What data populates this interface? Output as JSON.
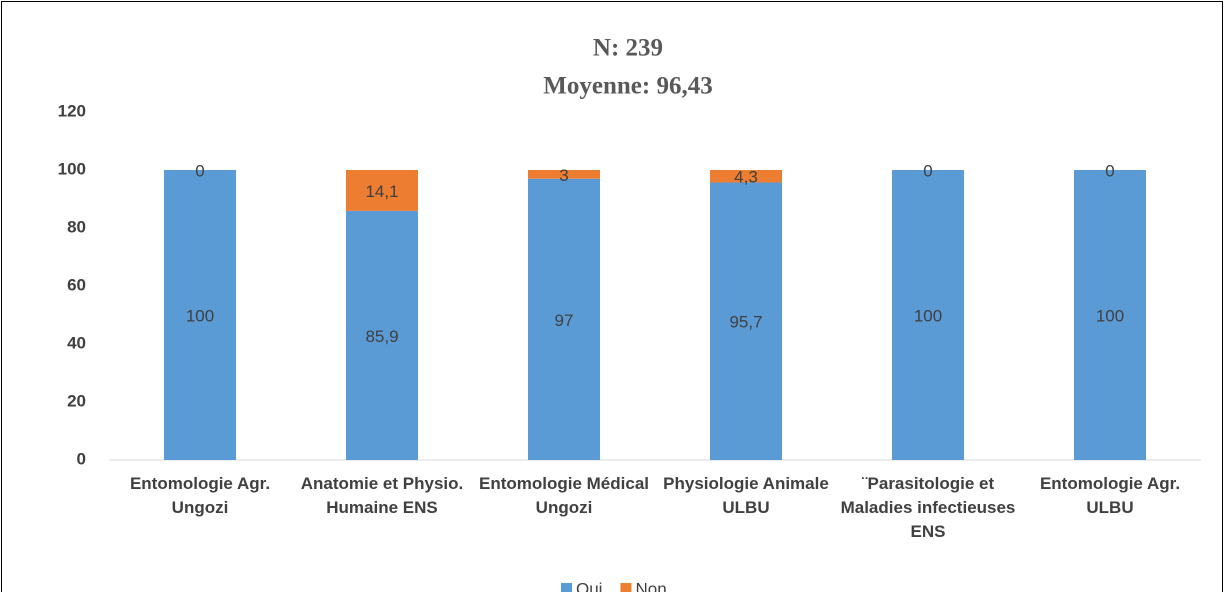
{
  "chart_data": {
    "type": "stacked_bar",
    "title": "N: 239",
    "subtitle": "Moyenne: 96,43",
    "categories": [
      "Entomologie Agr. Ungozi",
      "Anatomie et Physio. Humaine ENS",
      "Entomologie Médical Ungozi",
      "Physiologie Animale ULBU",
      "¨Parasitologie et Maladies infectieuses ENS",
      "Entomologie Agr. ULBU"
    ],
    "series": [
      {
        "name": "Oui",
        "color": "#5b9bd5",
        "values": [
          100,
          85.9,
          97,
          95.7,
          100,
          100
        ],
        "value_labels": [
          "100",
          "85,9",
          "97",
          "95,7",
          "100",
          "100"
        ]
      },
      {
        "name": "Non",
        "color": "#ed7d31",
        "values": [
          0,
          14.1,
          3,
          4.3,
          0,
          0
        ],
        "value_labels": [
          "0",
          "14,1",
          "3",
          "4,3",
          "0",
          "0"
        ]
      }
    ],
    "ylim": [
      0,
      120
    ],
    "yticks": [
      0,
      20,
      40,
      60,
      80,
      100,
      120
    ],
    "grid": false,
    "legend": "bottom"
  }
}
